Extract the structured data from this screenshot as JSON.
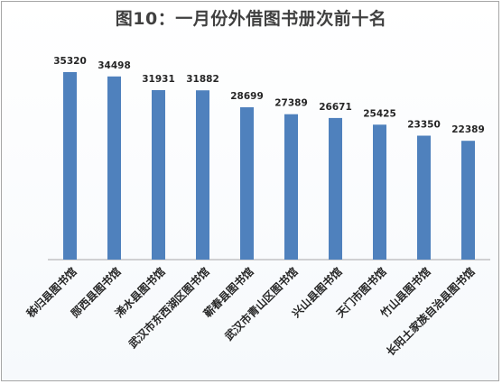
{
  "chart_data": {
    "type": "bar",
    "title": "图10：一月份外借图书册次前十名",
    "categories": [
      "秭归县图书馆",
      "郧西县图书馆",
      "浠水县图书馆",
      "武汉市东西湖区图书馆",
      "蕲春县图书馆",
      "武汉市青山区图书馆",
      "兴山县图书馆",
      "天门市图书馆",
      "竹山县图书馆",
      "长阳土家族自治县图书馆"
    ],
    "values": [
      35320,
      34498,
      31931,
      31882,
      28699,
      27389,
      26671,
      25425,
      23350,
      22389
    ],
    "data_labels": [
      "35320",
      "34498",
      "31931",
      "31882",
      "28699",
      "27389",
      "26671",
      "25425",
      "23350",
      "22389"
    ],
    "ylim": [
      0,
      40000
    ],
    "xlabel": "",
    "ylabel": "",
    "grid": false,
    "legend": "none",
    "bar_color": "#4f81bd",
    "axis_color": "#a6a6a6",
    "label_color": "#262626"
  }
}
